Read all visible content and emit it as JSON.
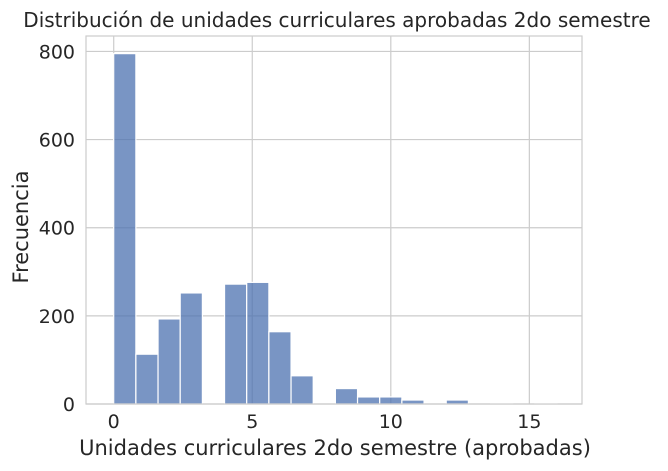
{
  "chart_data": {
    "type": "bar",
    "title": "Distribución de unidades curriculares aprobadas 2do semestre",
    "xlabel": "Unidades curriculares 2do semestre (aprobadas)",
    "ylabel": "Frecuencia",
    "xlim": [
      -1.0,
      16.9
    ],
    "ylim": [
      0,
      835
    ],
    "xticks": [
      0,
      5,
      10,
      15
    ],
    "yticks": [
      0,
      200,
      400,
      600,
      800
    ],
    "grid": true,
    "bar_color": "#4c72b0",
    "bins": [
      {
        "x0": 0.0,
        "x1": 0.8,
        "value": 795
      },
      {
        "x0": 0.8,
        "x1": 1.6,
        "value": 113
      },
      {
        "x0": 1.6,
        "x1": 2.4,
        "value": 193
      },
      {
        "x0": 2.4,
        "x1": 3.2,
        "value": 252
      },
      {
        "x0": 3.2,
        "x1": 4.0,
        "value": 0
      },
      {
        "x0": 4.0,
        "x1": 4.8,
        "value": 272
      },
      {
        "x0": 4.8,
        "x1": 5.6,
        "value": 276
      },
      {
        "x0": 5.6,
        "x1": 6.4,
        "value": 164
      },
      {
        "x0": 6.4,
        "x1": 7.2,
        "value": 64
      },
      {
        "x0": 7.2,
        "x1": 8.0,
        "value": 0
      },
      {
        "x0": 8.0,
        "x1": 8.8,
        "value": 35
      },
      {
        "x0": 8.8,
        "x1": 9.6,
        "value": 16
      },
      {
        "x0": 9.6,
        "x1": 10.4,
        "value": 16
      },
      {
        "x0": 10.4,
        "x1": 11.2,
        "value": 9
      },
      {
        "x0": 11.2,
        "x1": 12.0,
        "value": 0
      },
      {
        "x0": 12.0,
        "x1": 12.8,
        "value": 9
      },
      {
        "x0": 12.8,
        "x1": 13.6,
        "value": 0
      },
      {
        "x0": 13.6,
        "x1": 14.4,
        "value": 1
      },
      {
        "x0": 14.4,
        "x1": 15.2,
        "value": 0
      },
      {
        "x0": 15.2,
        "x1": 16.0,
        "value": 1
      }
    ]
  }
}
